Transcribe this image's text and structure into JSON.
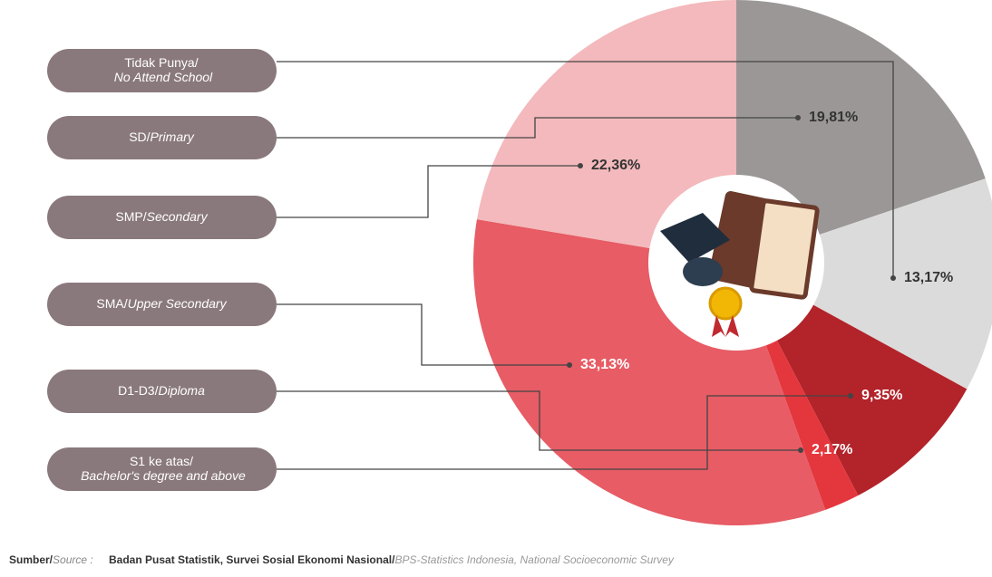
{
  "chart_data": {
    "type": "pie",
    "categories": [
      "SD/Primary",
      "Tidak Punya/ No Attend School",
      "S1 ke atas/ Bachelor's degree and above",
      "D1-D3/Diploma",
      "SMA/Upper Secondary",
      "SMP/Secondary"
    ],
    "values": [
      19.81,
      13.17,
      9.35,
      2.17,
      33.13,
      22.36
    ],
    "value_labels": [
      "19,81%",
      "13,17%",
      "9,35%",
      "2,17%",
      "33,13%",
      "22,36%"
    ],
    "colors": [
      "#9c9797",
      "#dcdbdb",
      "#b3232a",
      "#e4373d",
      "#e75c65",
      "#f3b9bc"
    ],
    "source_label": "Sumber/Source :",
    "source": "Badan Pusat Statistik, Survei Sosial Ekonomi Nasional/BPS-Statistics Indonesia, National Socioeconomic Survey"
  }
}
